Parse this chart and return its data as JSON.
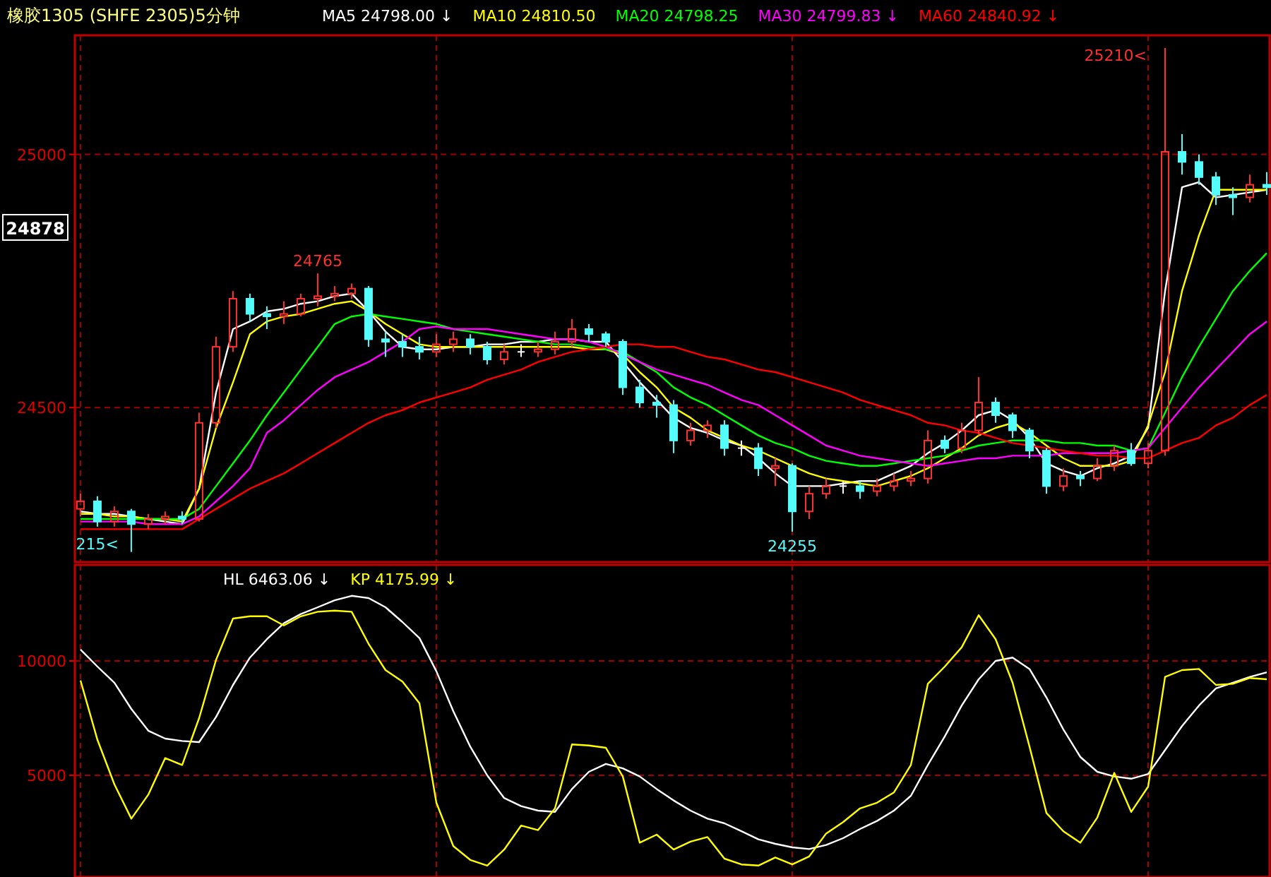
{
  "chart_data": [
    {
      "type": "candlestick",
      "title": "橡胶1305 (SHFE 2305)5分钟",
      "categories": [
        null,
        null,
        null,
        null,
        null,
        null,
        null,
        null,
        null,
        null,
        null,
        null,
        null,
        null,
        null,
        null,
        null,
        null,
        null,
        null,
        null,
        null,
        null,
        null,
        null,
        null,
        null,
        null,
        null,
        null,
        null,
        null,
        null,
        null,
        null,
        null,
        null,
        null,
        null,
        null,
        null,
        null,
        null,
        null,
        null,
        null,
        null,
        null,
        null,
        null,
        null,
        null,
        null,
        null,
        null,
        null,
        null,
        null,
        null,
        null,
        null,
        null,
        null,
        null,
        null,
        null,
        null,
        null,
        null,
        null,
        null
      ],
      "ohlc": [
        [
          24300,
          24330,
          24285,
          24315
        ],
        [
          24315,
          24325,
          24265,
          24275
        ],
        [
          24275,
          24305,
          24265,
          24295
        ],
        [
          24295,
          24300,
          24215,
          24270
        ],
        [
          24270,
          24290,
          24260,
          24280
        ],
        [
          24280,
          24295,
          24270,
          24285
        ],
        [
          24285,
          24295,
          24270,
          24280
        ],
        [
          24280,
          24490,
          24275,
          24470
        ],
        [
          24470,
          24640,
          24460,
          24620
        ],
        [
          24620,
          24730,
          24610,
          24715
        ],
        [
          24715,
          24725,
          24670,
          24685
        ],
        [
          24685,
          24700,
          24655,
          24680
        ],
        [
          24680,
          24710,
          24665,
          24685
        ],
        [
          24685,
          24725,
          24680,
          24715
        ],
        [
          24715,
          24765,
          24700,
          24720
        ],
        [
          24720,
          24740,
          24710,
          24725
        ],
        [
          24725,
          24745,
          24715,
          24735
        ],
        [
          24735,
          24740,
          24620,
          24635
        ],
        [
          24635,
          24650,
          24600,
          24630
        ],
        [
          24630,
          24645,
          24600,
          24620
        ],
        [
          24620,
          24640,
          24595,
          24610
        ],
        [
          24610,
          24645,
          24600,
          24625
        ],
        [
          24625,
          24650,
          24610,
          24635
        ],
        [
          24635,
          24645,
          24605,
          24620
        ],
        [
          24620,
          24630,
          24585,
          24595
        ],
        [
          24595,
          24625,
          24585,
          24610
        ],
        [
          24610,
          24625,
          24600,
          24610
        ],
        [
          24610,
          24630,
          24600,
          24615
        ],
        [
          24615,
          24650,
          24605,
          24630
        ],
        [
          24630,
          24675,
          24620,
          24655
        ],
        [
          24655,
          24665,
          24630,
          24645
        ],
        [
          24645,
          24650,
          24620,
          24630
        ],
        [
          24630,
          24635,
          24525,
          24540
        ],
        [
          24540,
          24555,
          24500,
          24510
        ],
        [
          24510,
          24525,
          24480,
          24505
        ],
        [
          24505,
          24515,
          24410,
          24435
        ],
        [
          24435,
          24470,
          24425,
          24455
        ],
        [
          24455,
          24475,
          24440,
          24465
        ],
        [
          24465,
          24475,
          24405,
          24420
        ],
        [
          24420,
          24435,
          24405,
          24420
        ],
        [
          24420,
          24430,
          24365,
          24380
        ],
        [
          24380,
          24400,
          24345,
          24385
        ],
        [
          24385,
          24390,
          24255,
          24295
        ],
        [
          24295,
          24345,
          24280,
          24330
        ],
        [
          24330,
          24360,
          24320,
          24345
        ],
        [
          24345,
          24355,
          24330,
          24345
        ],
        [
          24345,
          24355,
          24320,
          24335
        ],
        [
          24335,
          24360,
          24325,
          24345
        ],
        [
          24345,
          24370,
          24335,
          24355
        ],
        [
          24355,
          24375,
          24345,
          24360
        ],
        [
          24360,
          24455,
          24350,
          24435
        ],
        [
          24435,
          24445,
          24410,
          24420
        ],
        [
          24420,
          24470,
          24410,
          24455
        ],
        [
          24455,
          24560,
          24445,
          24510
        ],
        [
          24510,
          24520,
          24470,
          24485
        ],
        [
          24485,
          24490,
          24440,
          24455
        ],
        [
          24455,
          24460,
          24400,
          24415
        ],
        [
          24415,
          24420,
          24330,
          24345
        ],
        [
          24345,
          24380,
          24335,
          24365
        ],
        [
          24365,
          24375,
          24345,
          24360
        ],
        [
          24360,
          24400,
          24355,
          24385
        ],
        [
          24385,
          24425,
          24375,
          24415
        ],
        [
          24415,
          24430,
          24385,
          24390
        ],
        [
          24390,
          24430,
          24380,
          24415
        ],
        [
          24415,
          25210,
          24405,
          25005
        ],
        [
          25005,
          25040,
          24960,
          24985
        ],
        [
          24985,
          25000,
          24940,
          24955
        ],
        [
          24955,
          24965,
          24900,
          24920
        ],
        [
          24920,
          24935,
          24880,
          24915
        ],
        [
          24915,
          24960,
          24905,
          24940
        ],
        [
          24940,
          24965,
          24920,
          24935
        ]
      ],
      "colors": [
        "#ff3030",
        "#54fcfc",
        "#ff3030",
        "#54fcfc",
        "#ff3030",
        "#ff3030",
        "#54fcfc",
        "#ff3030",
        "#ff3030",
        "#ff3030",
        "#54fcfc",
        "#54fcfc",
        "#ff3030",
        "#ff3030",
        "#ff3030",
        "#ff3030",
        "#ff3030",
        "#54fcfc",
        "#54fcfc",
        "#54fcfc",
        "#54fcfc",
        "#ff3030",
        "#ff3030",
        "#54fcfc",
        "#54fcfc",
        "#ff3030",
        "#ffffff",
        "#ff3030",
        "#ff3030",
        "#ff3030",
        "#54fcfc",
        "#54fcfc",
        "#54fcfc",
        "#54fcfc",
        "#54fcfc",
        "#54fcfc",
        "#ff3030",
        "#ff3030",
        "#54fcfc",
        "#ffffff",
        "#54fcfc",
        "#ff3030",
        "#54fcfc",
        "#ff3030",
        "#ff3030",
        "#ffffff",
        "#54fcfc",
        "#ff3030",
        "#ff3030",
        "#ff3030",
        "#ff3030",
        "#54fcfc",
        "#ff3030",
        "#ff3030",
        "#54fcfc",
        "#54fcfc",
        "#54fcfc",
        "#54fcfc",
        "#ff3030",
        "#54fcfc",
        "#ff3030",
        "#ff3030",
        "#54fcfc",
        "#ff3030",
        "#ff3030",
        "#54fcfc",
        "#54fcfc",
        "#54fcfc",
        "#54fcfc",
        "#ff3030",
        "#54fcfc"
      ],
      "series": [
        {
          "name": "MA5 24798.00 ↓",
          "type": "line",
          "color": "#ffffff",
          "values": [
            24295,
            24290,
            24290,
            24285,
            24280,
            24275,
            24270,
            24340,
            24530,
            24655,
            24670,
            24690,
            24695,
            24705,
            24710,
            24720,
            24725,
            24690,
            24650,
            24620,
            24615,
            24615,
            24620,
            24620,
            24625,
            24625,
            24630,
            24630,
            24635,
            24635,
            24630,
            24630,
            24590,
            24550,
            24515,
            24480,
            24460,
            24450,
            24435,
            24425,
            24400,
            24370,
            24345,
            24345,
            24345,
            24350,
            24355,
            24355,
            24370,
            24385,
            24410,
            24430,
            24455,
            24485,
            24495,
            24475,
            24440,
            24390,
            24375,
            24365,
            24380,
            24390,
            24405,
            24460,
            24730,
            24935,
            24945,
            24915,
            24920,
            24925,
            24930
          ]
        },
        {
          "name": "MA10 24810.50",
          "type": "line",
          "color": "#ffff00",
          "values": [
            24290,
            24290,
            24285,
            24285,
            24280,
            24280,
            24275,
            24340,
            24460,
            24550,
            24645,
            24670,
            24680,
            24685,
            24695,
            24705,
            24710,
            24690,
            24665,
            24645,
            24625,
            24620,
            24620,
            24620,
            24620,
            24620,
            24620,
            24620,
            24620,
            24620,
            24615,
            24615,
            24605,
            24570,
            24540,
            24500,
            24480,
            24455,
            24440,
            24425,
            24415,
            24400,
            24385,
            24370,
            24360,
            24355,
            24350,
            24345,
            24355,
            24365,
            24380,
            24400,
            24420,
            24445,
            24460,
            24470,
            24450,
            24425,
            24400,
            24385,
            24385,
            24385,
            24395,
            24465,
            24570,
            24730,
            24840,
            24930,
            24930,
            24930,
            24930
          ]
        },
        {
          "name": "MA20 24798.25",
          "type": "line",
          "color": "#00ff00",
          "values": [
            24280,
            24280,
            24280,
            24280,
            24280,
            24280,
            24280,
            24300,
            24345,
            24390,
            24435,
            24485,
            24530,
            24575,
            24620,
            24665,
            24680,
            24685,
            24680,
            24675,
            24670,
            24665,
            24655,
            24650,
            24645,
            24640,
            24635,
            24630,
            24625,
            24625,
            24620,
            24615,
            24610,
            24590,
            24570,
            24540,
            24520,
            24505,
            24485,
            24465,
            24445,
            24430,
            24420,
            24405,
            24395,
            24390,
            24385,
            24385,
            24390,
            24395,
            24400,
            24405,
            24415,
            24425,
            24430,
            24435,
            24435,
            24435,
            24430,
            24430,
            24425,
            24425,
            24415,
            24420,
            24490,
            24560,
            24620,
            24675,
            24730,
            24770,
            24805
          ]
        },
        {
          "name": "MA30 24799.83 ↓",
          "type": "line",
          "color": "#ff00ff",
          "values": [
            24275,
            24275,
            24275,
            24275,
            24270,
            24270,
            24270,
            24285,
            24315,
            24345,
            24380,
            24450,
            24475,
            24505,
            24535,
            24560,
            24575,
            24590,
            24610,
            24630,
            24655,
            24660,
            24655,
            24655,
            24655,
            24650,
            24645,
            24640,
            24635,
            24635,
            24630,
            24620,
            24605,
            24590,
            24575,
            24565,
            24555,
            24545,
            24530,
            24515,
            24505,
            24485,
            24465,
            24445,
            24425,
            24415,
            24405,
            24400,
            24395,
            24390,
            24385,
            24390,
            24395,
            24400,
            24400,
            24405,
            24405,
            24405,
            24410,
            24410,
            24410,
            24410,
            24415,
            24420,
            24460,
            24500,
            24540,
            24575,
            24610,
            24645,
            24670
          ]
        },
        {
          "name": "MA60 24840.92 ↓",
          "type": "line",
          "color": "#ff0000",
          "values": [
            24260,
            24260,
            24260,
            24260,
            24260,
            24260,
            24260,
            24280,
            24300,
            24320,
            24340,
            24355,
            24370,
            24390,
            24410,
            24430,
            24450,
            24470,
            24485,
            24495,
            24510,
            24520,
            24530,
            24540,
            24555,
            24565,
            24575,
            24590,
            24600,
            24610,
            24615,
            24620,
            24625,
            24625,
            24620,
            24620,
            24610,
            24600,
            24595,
            24585,
            24575,
            24570,
            24560,
            24550,
            24540,
            24530,
            24515,
            24505,
            24495,
            24485,
            24470,
            24465,
            24455,
            24450,
            24440,
            24430,
            24425,
            24420,
            24415,
            24410,
            24405,
            24405,
            24400,
            24400,
            24415,
            24430,
            24440,
            24465,
            24480,
            24505,
            24525
          ]
        }
      ],
      "ylim": [
        24195,
        25235
      ],
      "yticks": [
        24500,
        25000
      ],
      "grid": true,
      "legend": "top",
      "annotations": [
        {
          "text": "24765",
          "y": 24765
        },
        {
          "text": "24255",
          "y": 24255
        },
        "25210<",
        "215<",
        "24878"
      ]
    },
    {
      "type": "line",
      "categories": [
        null,
        null,
        null,
        null,
        null,
        null,
        null,
        null,
        null,
        null,
        null,
        null,
        null,
        null,
        null,
        null,
        null,
        null,
        null,
        null,
        null,
        null,
        null,
        null,
        null,
        null,
        null,
        null,
        null,
        null,
        null,
        null,
        null,
        null,
        null,
        null,
        null,
        null,
        null,
        null,
        null,
        null,
        null,
        null,
        null,
        null,
        null,
        null,
        null,
        null,
        null,
        null,
        null,
        null,
        null,
        null,
        null,
        null,
        null,
        null,
        null,
        null,
        null,
        null,
        null,
        null,
        null,
        null,
        null,
        null,
        null
      ],
      "series": [
        {
          "name": "HL 6463.06 ↓",
          "color": "#ffffff",
          "values": [
            10500,
            9750,
            9050,
            7900,
            6950,
            6600,
            6500,
            6450,
            7550,
            8950,
            10150,
            10950,
            11650,
            12050,
            12350,
            12650,
            12850,
            12750,
            12350,
            11700,
            11000,
            9550,
            7800,
            6250,
            5000,
            4000,
            3650,
            3450,
            3400,
            4400,
            5150,
            5500,
            5300,
            4950,
            4400,
            3900,
            3450,
            3100,
            2900,
            2550,
            2200,
            2000,
            1850,
            1770,
            1950,
            2250,
            2650,
            3000,
            3450,
            4100,
            5450,
            6700,
            8050,
            9200,
            10000,
            10150,
            9650,
            8400,
            7000,
            5800,
            5150,
            4950,
            4850,
            5050,
            6100,
            7150,
            8050,
            8800,
            9050,
            9300,
            9500
          ]
        },
        {
          "name": "KP 4175.99 ↓",
          "color": "#ffff00",
          "values": [
            9150,
            6550,
            4600,
            3100,
            4150,
            5750,
            5450,
            7500,
            10050,
            11850,
            11950,
            11950,
            11550,
            11950,
            12150,
            12200,
            12150,
            10750,
            9600,
            9100,
            8150,
            3800,
            1900,
            1300,
            1050,
            1750,
            2800,
            2600,
            3550,
            6350,
            6300,
            6200,
            4950,
            2050,
            2400,
            1750,
            2100,
            2300,
            1350,
            1100,
            1050,
            1400,
            1100,
            1450,
            2450,
            2950,
            3550,
            3800,
            4250,
            5450,
            9000,
            9750,
            10600,
            12000,
            10950,
            9050,
            6250,
            3350,
            2550,
            2050,
            3150,
            5100,
            3400,
            4500,
            9300,
            9600,
            9650,
            8950,
            9000,
            9250,
            9200
          ]
        }
      ],
      "ylim": [
        550,
        14200
      ],
      "yticks": [
        5000,
        10000
      ],
      "grid": true,
      "legend": "top"
    }
  ]
}
